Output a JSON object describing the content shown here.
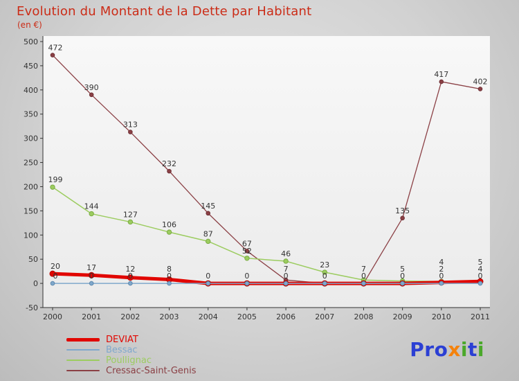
{
  "title": {
    "text": "Evolution du Montant de la Dette par Habitant",
    "subtitle": "(en €)",
    "color": "#cb2c17"
  },
  "chart_data": {
    "type": "line",
    "title": "Evolution du Montant de la Dette par Habitant",
    "ylabel": "en €",
    "x": [
      2000,
      2001,
      2002,
      2003,
      2004,
      2005,
      2006,
      2007,
      2008,
      2009,
      2010,
      2011
    ],
    "ylim": [
      -50,
      500
    ],
    "ytick_step": 50,
    "grid": false,
    "legend_position": "bottom-left",
    "label_color": "#333333",
    "axis_color": "#333333",
    "series": [
      {
        "name": "DEVIAT",
        "color": "#e10600",
        "marker_color": "#b50500",
        "line_width": 5,
        "marker_radius": 4,
        "values": [
          20,
          17,
          12,
          8,
          0,
          0,
          0,
          0,
          0,
          0,
          2,
          4
        ]
      },
      {
        "name": "Bessac",
        "color": "#7fa8cc",
        "marker_color": "#5d88ad",
        "line_width": 1.5,
        "marker_radius": 2.8,
        "values": [
          0,
          0,
          0,
          0,
          0,
          0,
          0,
          0,
          0,
          0,
          0,
          0
        ]
      },
      {
        "name": "Poullignac",
        "color": "#9ccc60",
        "marker_color": "#7aac42",
        "line_width": 1.5,
        "marker_radius": 3.2,
        "values": [
          199,
          144,
          127,
          106,
          87,
          52,
          46,
          23,
          7,
          5,
          4,
          5
        ]
      },
      {
        "name": "Cressac-Saint-Genis",
        "color": "#8b4045",
        "marker_color": "#6f3136",
        "line_width": 1.3,
        "marker_radius": 2.8,
        "values": [
          472,
          390,
          313,
          232,
          145,
          67,
          7,
          0,
          0,
          135,
          417,
          402
        ]
      }
    ]
  },
  "logo": {
    "parts": [
      {
        "text": "Pro",
        "color": "#2b3fd4"
      },
      {
        "text": "x",
        "color": "#f5820b"
      },
      {
        "text": "i",
        "color": "#4aa82a"
      },
      {
        "text": "t",
        "color": "#2b3fd4"
      },
      {
        "text": "i",
        "color": "#4aa82a"
      }
    ]
  }
}
